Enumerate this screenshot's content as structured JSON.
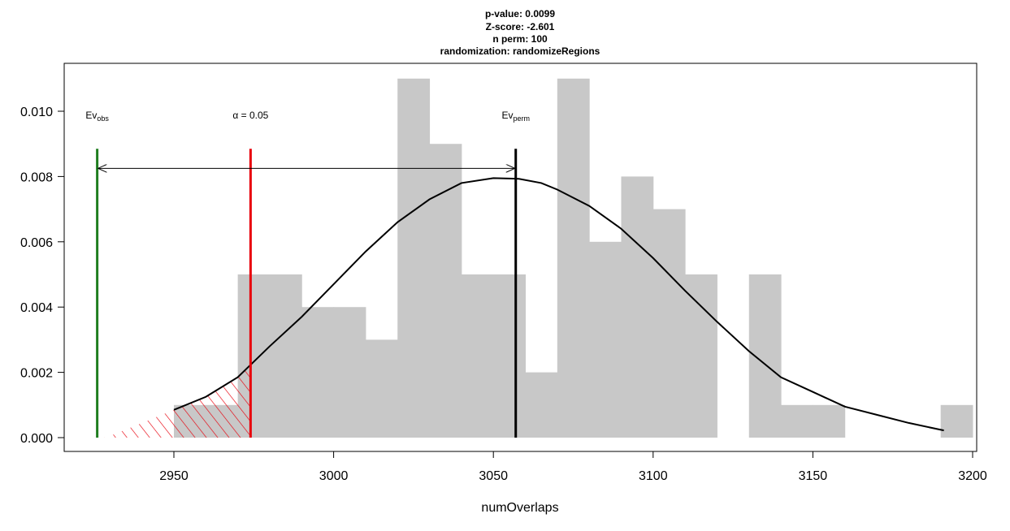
{
  "chart_data": {
    "type": "bar",
    "title_lines": [
      "p-value:  0.0099",
      "Z-score:  -2.601",
      "n perm:  100",
      "randomization:  randomizeRegions"
    ],
    "xlabel": "numOverlaps",
    "ylabel": "",
    "xlim": [
      2925,
      3200
    ],
    "ylim": [
      0,
      0.011
    ],
    "x_ticks": [
      2950,
      3000,
      3050,
      3100,
      3150,
      3200
    ],
    "y_ticks": [
      0.0,
      0.002,
      0.004,
      0.006,
      0.008,
      0.01
    ],
    "y_tick_labels": [
      "0.000",
      "0.002",
      "0.004",
      "0.006",
      "0.008",
      "0.010"
    ],
    "histogram": {
      "bin_width": 10,
      "color": "#c8c8c8",
      "bins": [
        {
          "x0": 2950,
          "x1": 2960,
          "density": 0.001
        },
        {
          "x0": 2960,
          "x1": 2970,
          "density": 0.001
        },
        {
          "x0": 2970,
          "x1": 2980,
          "density": 0.005
        },
        {
          "x0": 2980,
          "x1": 2990,
          "density": 0.005
        },
        {
          "x0": 2990,
          "x1": 3000,
          "density": 0.004
        },
        {
          "x0": 3000,
          "x1": 3010,
          "density": 0.004
        },
        {
          "x0": 3010,
          "x1": 3020,
          "density": 0.003
        },
        {
          "x0": 3020,
          "x1": 3030,
          "density": 0.011
        },
        {
          "x0": 3030,
          "x1": 3040,
          "density": 0.009
        },
        {
          "x0": 3040,
          "x1": 3050,
          "density": 0.005
        },
        {
          "x0": 3050,
          "x1": 3060,
          "density": 0.005
        },
        {
          "x0": 3060,
          "x1": 3070,
          "density": 0.002
        },
        {
          "x0": 3070,
          "x1": 3080,
          "density": 0.011
        },
        {
          "x0": 3080,
          "x1": 3090,
          "density": 0.006
        },
        {
          "x0": 3090,
          "x1": 3100,
          "density": 0.008
        },
        {
          "x0": 3100,
          "x1": 3110,
          "density": 0.007
        },
        {
          "x0": 3110,
          "x1": 3120,
          "density": 0.005
        },
        {
          "x0": 3120,
          "x1": 3130,
          "density": 0.0
        },
        {
          "x0": 3130,
          "x1": 3140,
          "density": 0.005
        },
        {
          "x0": 3140,
          "x1": 3150,
          "density": 0.001
        },
        {
          "x0": 3150,
          "x1": 3160,
          "density": 0.001
        },
        {
          "x0": 3160,
          "x1": 3170,
          "density": 0.0
        },
        {
          "x0": 3170,
          "x1": 3180,
          "density": 0.0
        },
        {
          "x0": 3180,
          "x1": 3190,
          "density": 0.0
        },
        {
          "x0": 3190,
          "x1": 3200,
          "density": 0.001
        }
      ]
    },
    "density_curve": {
      "color": "#000000",
      "x": [
        2950,
        2960,
        2970,
        2980,
        2990,
        3000,
        3010,
        3020,
        3030,
        3040,
        3050,
        3058,
        3065,
        3070,
        3080,
        3090,
        3100,
        3110,
        3120,
        3130,
        3140,
        3150,
        3160,
        3170,
        3180,
        3191
      ],
      "y": [
        0.00085,
        0.00125,
        0.00185,
        0.0028,
        0.0037,
        0.0047,
        0.0057,
        0.0066,
        0.0073,
        0.0078,
        0.00795,
        0.00793,
        0.0078,
        0.0076,
        0.0071,
        0.0064,
        0.0055,
        0.0045,
        0.00355,
        0.00265,
        0.00185,
        0.0014,
        0.00095,
        0.0007,
        0.00045,
        0.00022
      ]
    },
    "lines": {
      "observed": {
        "x": 2926,
        "y_top": 0.00885,
        "color": "#1e7d1e",
        "label": "Ev",
        "label_sub": "obs",
        "label_y": 0.0099
      },
      "alpha": {
        "x": 2974,
        "y_top": 0.00885,
        "color": "#e8000b",
        "label": "α = 0.05",
        "label_y": 0.0099
      },
      "permuted": {
        "x": 3057,
        "y_top": 0.00885,
        "color": "#000000",
        "label": "Ev",
        "label_sub": "perm",
        "label_y": 0.0099
      }
    },
    "arrow": {
      "x_start": 2926,
      "x_end": 3057,
      "y": 0.00825,
      "color": "#000000"
    },
    "shaded_region": {
      "x0": 2926,
      "x1": 2974,
      "hatch_color": "#e8000b"
    },
    "grid": false,
    "legend": "none"
  }
}
